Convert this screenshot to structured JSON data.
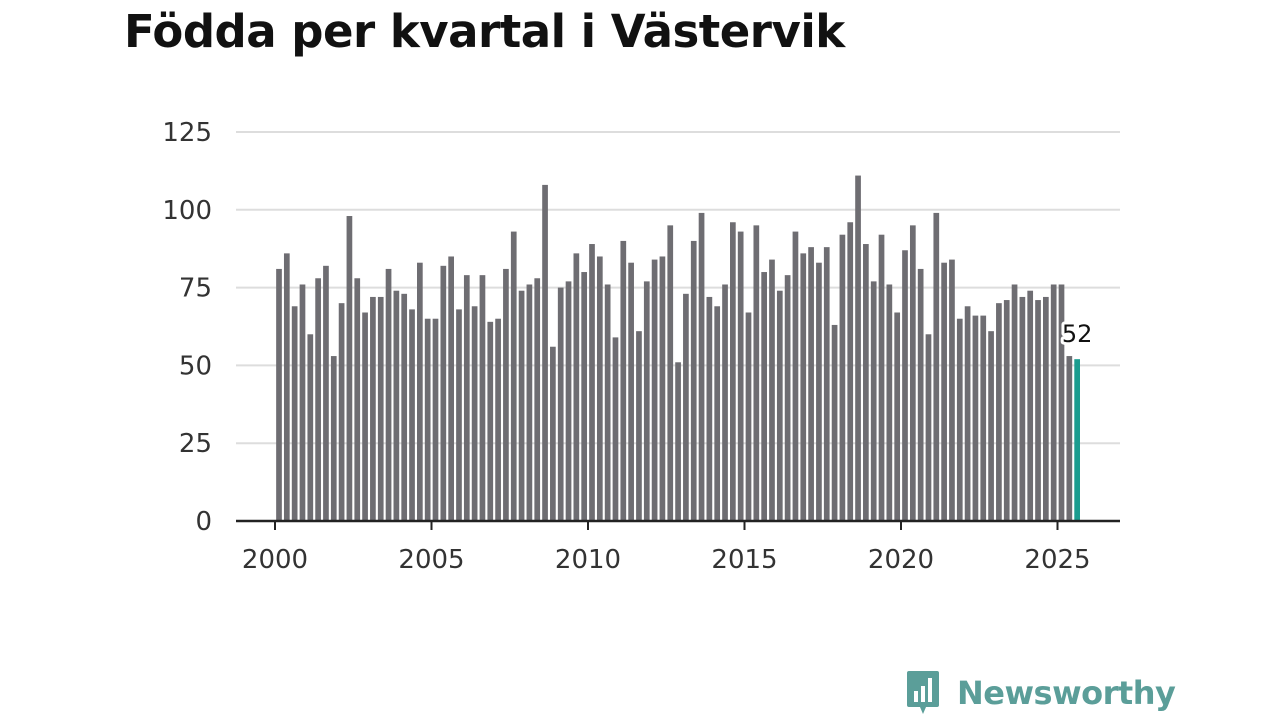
{
  "title": "Födda per kvartal i Västervik",
  "colors": {
    "bar": "#6e6d72",
    "highlight": "#1a9c8f",
    "grid": "#dddddd",
    "axis": "#222222",
    "brand": "#5b9e99"
  },
  "brand": {
    "name": "Newsworthy",
    "icon": "chart-speech-bubble-icon"
  },
  "chart_data": {
    "type": "bar",
    "title": "Födda per kvartal i Västervik",
    "xlabel": "",
    "ylabel": "",
    "ylim": [
      0,
      125
    ],
    "yticks": [
      0,
      25,
      50,
      75,
      100,
      125
    ],
    "xticks": [
      2000,
      2005,
      2010,
      2015,
      2020,
      2025
    ],
    "x_start": 2000,
    "periods_per_year": 4,
    "grid": true,
    "legend": "none",
    "highlight_last": true,
    "last_value_label": "52",
    "categories": [
      "2000 Q1",
      "2000 Q2",
      "2000 Q3",
      "2000 Q4",
      "2001 Q1",
      "2001 Q2",
      "2001 Q3",
      "2001 Q4",
      "2002 Q1",
      "2002 Q2",
      "2002 Q3",
      "2002 Q4",
      "2003 Q1",
      "2003 Q2",
      "2003 Q3",
      "2003 Q4",
      "2004 Q1",
      "2004 Q2",
      "2004 Q3",
      "2004 Q4",
      "2005 Q1",
      "2005 Q2",
      "2005 Q3",
      "2005 Q4",
      "2006 Q1",
      "2006 Q2",
      "2006 Q3",
      "2006 Q4",
      "2007 Q1",
      "2007 Q2",
      "2007 Q3",
      "2007 Q4",
      "2008 Q1",
      "2008 Q2",
      "2008 Q3",
      "2008 Q4",
      "2009 Q1",
      "2009 Q2",
      "2009 Q3",
      "2009 Q4",
      "2010 Q1",
      "2010 Q2",
      "2010 Q3",
      "2010 Q4",
      "2011 Q1",
      "2011 Q2",
      "2011 Q3",
      "2011 Q4",
      "2012 Q1",
      "2012 Q2",
      "2012 Q3",
      "2012 Q4",
      "2013 Q1",
      "2013 Q2",
      "2013 Q3",
      "2013 Q4",
      "2014 Q1",
      "2014 Q2",
      "2014 Q3",
      "2014 Q4",
      "2015 Q1",
      "2015 Q2",
      "2015 Q3",
      "2015 Q4",
      "2016 Q1",
      "2016 Q2",
      "2016 Q3",
      "2016 Q4",
      "2017 Q1",
      "2017 Q2",
      "2017 Q3",
      "2017 Q4",
      "2018 Q1",
      "2018 Q2",
      "2018 Q3",
      "2018 Q4",
      "2019 Q1",
      "2019 Q2",
      "2019 Q3",
      "2019 Q4",
      "2020 Q1",
      "2020 Q2",
      "2020 Q3",
      "2020 Q4",
      "2021 Q1",
      "2021 Q2",
      "2021 Q3",
      "2021 Q4",
      "2022 Q1",
      "2022 Q2",
      "2022 Q3",
      "2022 Q4",
      "2023 Q1",
      "2023 Q2",
      "2023 Q3",
      "2023 Q4",
      "2024 Q1",
      "2024 Q2",
      "2024 Q3",
      "2024 Q4",
      "2025 Q1",
      "2025 Q2",
      "2025 Q3"
    ],
    "values": [
      81,
      86,
      69,
      76,
      60,
      78,
      82,
      53,
      70,
      98,
      78,
      67,
      72,
      72,
      81,
      74,
      73,
      68,
      83,
      65,
      65,
      82,
      85,
      68,
      79,
      69,
      79,
      64,
      65,
      81,
      93,
      74,
      76,
      78,
      108,
      56,
      75,
      77,
      86,
      80,
      89,
      85,
      76,
      59,
      90,
      83,
      61,
      77,
      84,
      85,
      95,
      51,
      73,
      90,
      99,
      72,
      69,
      76,
      96,
      93,
      67,
      95,
      80,
      84,
      74,
      79,
      93,
      86,
      88,
      83,
      88,
      63,
      92,
      96,
      111,
      89,
      77,
      92,
      76,
      67,
      87,
      95,
      81,
      60,
      99,
      83,
      84,
      65,
      69,
      66,
      66,
      61,
      70,
      71,
      76,
      72,
      74,
      71,
      72,
      76,
      76,
      53,
      52
    ]
  }
}
